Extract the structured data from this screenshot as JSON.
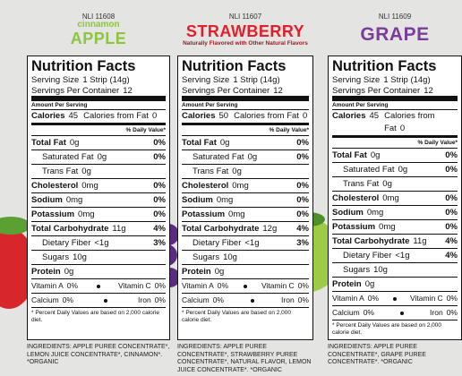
{
  "panels": [
    {
      "code": "NLI 11608",
      "flavor_prefix": "cinnamon",
      "name": "APPLE",
      "facts": {
        "title": "Nutrition Facts",
        "serving_size": {
          "label": "Serving Size",
          "value": "1 Strip (14g)"
        },
        "servings": {
          "label": "Servings Per Container",
          "value": "12"
        },
        "amount_per_serving": "Amount Per Serving",
        "calories": {
          "label": "Calories",
          "value": "45",
          "from_fat_label": "Calories from Fat",
          "from_fat_value": "0"
        },
        "dv_header": "% Daily Value*",
        "nutrients": [
          {
            "label": "Total Fat",
            "amount": "0g",
            "dv": "0%",
            "sub": [
              {
                "label": "Saturated Fat",
                "amount": "0g",
                "dv": "0%"
              },
              {
                "label": "Trans Fat",
                "amount": "0g"
              }
            ]
          },
          {
            "label": "Cholesterol",
            "amount": "0mg",
            "dv": "0%"
          },
          {
            "label": "Sodium",
            "amount": "0mg",
            "dv": "0%"
          },
          {
            "label": "Potassium",
            "amount": "0mg",
            "dv": "0%"
          },
          {
            "label": "Total Carbohydrate",
            "amount": "11g",
            "dv": "4%",
            "sub": [
              {
                "label": "Dietary Fiber",
                "amount": "<1g",
                "dv": "3%"
              },
              {
                "label": "Sugars",
                "amount": "10g"
              }
            ]
          },
          {
            "label": "Protein",
            "amount": "0g"
          }
        ],
        "vitamins": [
          [
            {
              "label": "Vitamin A",
              "value": "0%"
            },
            {
              "label": "Vitamin C",
              "value": "0%"
            }
          ],
          [
            {
              "label": "Calcium",
              "value": "0%"
            },
            {
              "label": "Iron",
              "value": "0%"
            }
          ]
        ],
        "footnote": "* Percent Daily Values are based on 2,000 calorie diet."
      },
      "ingredients": "INGREDIENTS: APPLE PUREE CONCENTRATE*, LEMON JUICE CONCENTRATE*, CINNAMON*. *ORGANIC"
    },
    {
      "code": "NLI 11607",
      "name": "STRAWBERRY",
      "note": "Naturally Flavored with Other Natural Flavors",
      "facts": {
        "title": "Nutrition Facts",
        "serving_size": {
          "label": "Serving Size",
          "value": "1 Strip (14g)"
        },
        "servings": {
          "label": "Servings Per Container",
          "value": "12"
        },
        "amount_per_serving": "Amount Per Serving",
        "calories": {
          "label": "Calories",
          "value": "50",
          "from_fat_label": "Calories from Fat",
          "from_fat_value": "0"
        },
        "dv_header": "% Daily Value*",
        "nutrients": [
          {
            "label": "Total Fat",
            "amount": "0g",
            "dv": "0%",
            "sub": [
              {
                "label": "Saturated Fat",
                "amount": "0g",
                "dv": "0%"
              },
              {
                "label": "Trans Fat",
                "amount": "0g"
              }
            ]
          },
          {
            "label": "Cholesterol",
            "amount": "0mg",
            "dv": "0%"
          },
          {
            "label": "Sodium",
            "amount": "0mg",
            "dv": "0%"
          },
          {
            "label": "Potassium",
            "amount": "0mg",
            "dv": "0%"
          },
          {
            "label": "Total Carbohydrate",
            "amount": "12g",
            "dv": "4%",
            "sub": [
              {
                "label": "Dietary Fiber",
                "amount": "<1g",
                "dv": "3%"
              },
              {
                "label": "Sugars",
                "amount": "10g"
              }
            ]
          },
          {
            "label": "Protein",
            "amount": "0g"
          }
        ],
        "vitamins": [
          [
            {
              "label": "Vitamin A",
              "value": "0%"
            },
            {
              "label": "Vitamin C",
              "value": "0%"
            }
          ],
          [
            {
              "label": "Calcium",
              "value": "0%"
            },
            {
              "label": "Iron",
              "value": "0%"
            }
          ]
        ],
        "footnote": "* Percent Daily Values are based on 2,000 calorie diet."
      },
      "ingredients": "INGREDIENTS: APPLE PUREE CONCENTRATE*, STRAWBERRY PUREE CONCENTRATE*, NATURAL FLAVOR, LEMON JUICE CONCENTRATE*. *ORGANIC"
    },
    {
      "code": "NLI 11609",
      "name": "GRAPE",
      "facts": {
        "title": "Nutrition Facts",
        "serving_size": {
          "label": "Serving Size",
          "value": "1 Strip (14g)"
        },
        "servings": {
          "label": "Servings Per Container",
          "value": "12"
        },
        "amount_per_serving": "Amount Per Serving",
        "calories": {
          "label": "Calories",
          "value": "45",
          "from_fat_label": "Calories from Fat",
          "from_fat_value": "0"
        },
        "dv_header": "% Daily Value*",
        "nutrients": [
          {
            "label": "Total Fat",
            "amount": "0g",
            "dv": "0%",
            "sub": [
              {
                "label": "Saturated Fat",
                "amount": "0g",
                "dv": "0%"
              },
              {
                "label": "Trans Fat",
                "amount": "0g"
              }
            ]
          },
          {
            "label": "Cholesterol",
            "amount": "0mg",
            "dv": "0%"
          },
          {
            "label": "Sodium",
            "amount": "0mg",
            "dv": "0%"
          },
          {
            "label": "Potassium",
            "amount": "0mg",
            "dv": "0%"
          },
          {
            "label": "Total Carbohydrate",
            "amount": "11g",
            "dv": "4%",
            "sub": [
              {
                "label": "Dietary Fiber",
                "amount": "<1g",
                "dv": "4%"
              },
              {
                "label": "Sugars",
                "amount": "10g"
              }
            ]
          },
          {
            "label": "Protein",
            "amount": "0g"
          }
        ],
        "vitamins": [
          [
            {
              "label": "Vitamin A",
              "value": "0%"
            },
            {
              "label": "Vitamin C",
              "value": "0%"
            }
          ],
          [
            {
              "label": "Calcium",
              "value": "0%"
            },
            {
              "label": "Iron",
              "value": "0%"
            }
          ]
        ],
        "footnote": "* Percent Daily Values are based on 2,000 calorie diet."
      },
      "ingredients": "INGREDIENTS: APPLE PUREE CONCENTRATE*, GRAPE PUREE CONCENTRATE*. *ORGANIC"
    }
  ]
}
